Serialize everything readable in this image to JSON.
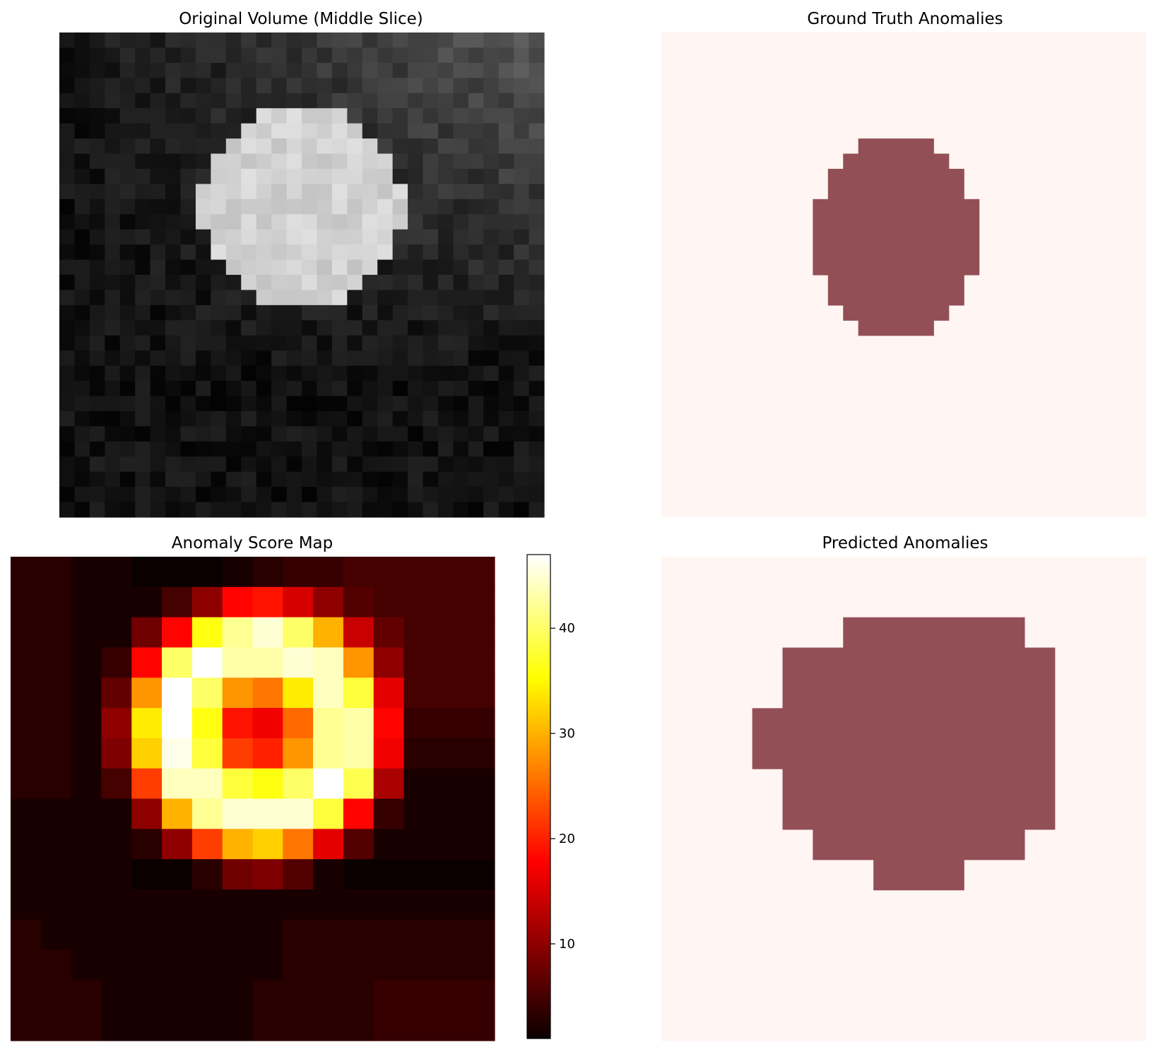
{
  "chart_data": [
    {
      "type": "heatmap",
      "title": "Original Volume (Middle Slice)",
      "colormap": "gray",
      "axis": "off",
      "grid_size": [
        32,
        32
      ],
      "sphere": {
        "center_col": 15.5,
        "center_row": 11,
        "radius": 6.6,
        "intensity": 0.82
      },
      "background_gradient": "brighter toward top-right",
      "noise": true
    },
    {
      "type": "heatmap",
      "title": "Ground Truth Anomalies",
      "colormap": "Reds (alpha 0.7)",
      "axis": "off",
      "grid_size": [
        32,
        32
      ],
      "background_color": "#fff5f2",
      "anomaly_color": "#934f56",
      "mask_rows": [
        [
          7,
          13,
          17
        ],
        [
          8,
          12,
          18
        ],
        [
          9,
          11,
          19
        ],
        [
          10,
          11,
          19
        ],
        [
          11,
          10,
          20
        ],
        [
          12,
          10,
          20
        ],
        [
          13,
          10,
          20
        ],
        [
          14,
          10,
          20
        ],
        [
          15,
          10,
          20
        ],
        [
          16,
          11,
          19
        ],
        [
          17,
          11,
          19
        ],
        [
          18,
          12,
          18
        ],
        [
          19,
          13,
          17
        ]
      ]
    },
    {
      "type": "heatmap",
      "title": "Anomaly Score Map",
      "colormap": "hot",
      "axis": "off",
      "grid_size": [
        16,
        16
      ],
      "vmin": 1,
      "vmax": 47,
      "colorbar_ticks": [
        10,
        20,
        30,
        40
      ],
      "values": [
        [
          3,
          3,
          2,
          2,
          1,
          1,
          1,
          2,
          3,
          4,
          4,
          5,
          5,
          5,
          5,
          5
        ],
        [
          3,
          3,
          2,
          2,
          2,
          5,
          10,
          18,
          19,
          15,
          10,
          6,
          5,
          5,
          5,
          5
        ],
        [
          3,
          3,
          2,
          2,
          8,
          18,
          36,
          42,
          45,
          40,
          30,
          14,
          7,
          5,
          5,
          5
        ],
        [
          3,
          3,
          2,
          4,
          18,
          40,
          47,
          43,
          43,
          45,
          44,
          28,
          10,
          5,
          5,
          5
        ],
        [
          3,
          3,
          2,
          7,
          28,
          47,
          40,
          28,
          26,
          34,
          44,
          38,
          16,
          5,
          5,
          5
        ],
        [
          3,
          3,
          2,
          10,
          34,
          47,
          36,
          19,
          17,
          25,
          42,
          43,
          18,
          4,
          4,
          4
        ],
        [
          3,
          3,
          2,
          9,
          32,
          46,
          38,
          22,
          20,
          28,
          42,
          43,
          17,
          3,
          3,
          3
        ],
        [
          3,
          3,
          2,
          5,
          22,
          44,
          44,
          38,
          36,
          40,
          47,
          39,
          12,
          2,
          2,
          2
        ],
        [
          2,
          2,
          2,
          2,
          10,
          30,
          42,
          45,
          45,
          45,
          38,
          18,
          4,
          2,
          2,
          2
        ],
        [
          2,
          2,
          2,
          2,
          3,
          10,
          22,
          30,
          32,
          26,
          16,
          6,
          2,
          2,
          2,
          2
        ],
        [
          2,
          2,
          2,
          2,
          1,
          1,
          3,
          8,
          9,
          6,
          2,
          1,
          1,
          1,
          1,
          1
        ],
        [
          2,
          2,
          2,
          2,
          2,
          2,
          2,
          2,
          2,
          2,
          2,
          2,
          2,
          2,
          2,
          2
        ],
        [
          3,
          2,
          2,
          2,
          2,
          2,
          2,
          2,
          2,
          3,
          3,
          3,
          3,
          3,
          3,
          3
        ],
        [
          3,
          3,
          2,
          2,
          2,
          2,
          2,
          2,
          2,
          3,
          3,
          3,
          3,
          3,
          3,
          3
        ],
        [
          3,
          3,
          3,
          2,
          2,
          2,
          2,
          2,
          3,
          3,
          3,
          3,
          4,
          4,
          4,
          4
        ],
        [
          3,
          3,
          3,
          2,
          2,
          2,
          2,
          2,
          3,
          3,
          3,
          3,
          4,
          4,
          4,
          4
        ]
      ]
    },
    {
      "type": "heatmap",
      "title": "Predicted Anomalies",
      "colormap": "Reds (alpha 0.7)",
      "axis": "off",
      "grid_size": [
        16,
        16
      ],
      "background_color": "#fff5f2",
      "anomaly_color": "#934f56",
      "mask_rows": [
        [
          2,
          6,
          11
        ],
        [
          3,
          4,
          12
        ],
        [
          4,
          4,
          12
        ],
        [
          5,
          3,
          12
        ],
        [
          6,
          3,
          12
        ],
        [
          7,
          4,
          12
        ],
        [
          8,
          4,
          12
        ],
        [
          9,
          5,
          11
        ],
        [
          10,
          7,
          9
        ]
      ]
    }
  ]
}
